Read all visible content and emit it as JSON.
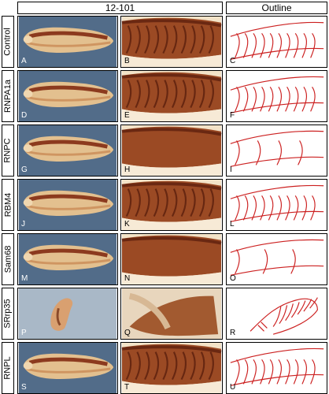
{
  "headers": {
    "middle": "12-101",
    "right": "Outline"
  },
  "rows": [
    {
      "label": "Control",
      "letters": [
        "A",
        "B",
        "C"
      ]
    },
    {
      "label": "RNPA1a",
      "letters": [
        "D",
        "E",
        "F"
      ]
    },
    {
      "label": "RNPC",
      "letters": [
        "G",
        "H",
        "I"
      ]
    },
    {
      "label": "RBM4",
      "letters": [
        "J",
        "K",
        "L"
      ]
    },
    {
      "label": "Sam68",
      "letters": [
        "M",
        "N",
        "O"
      ]
    },
    {
      "label": "SRrp35",
      "letters": [
        "P",
        "Q",
        "R"
      ]
    },
    {
      "label": "RNPL",
      "letters": [
        "S",
        "T",
        "U"
      ]
    }
  ],
  "colors": {
    "outline": "#cc2020",
    "embryo": "#b86a3a",
    "background_blue": "#6f8aa6"
  }
}
